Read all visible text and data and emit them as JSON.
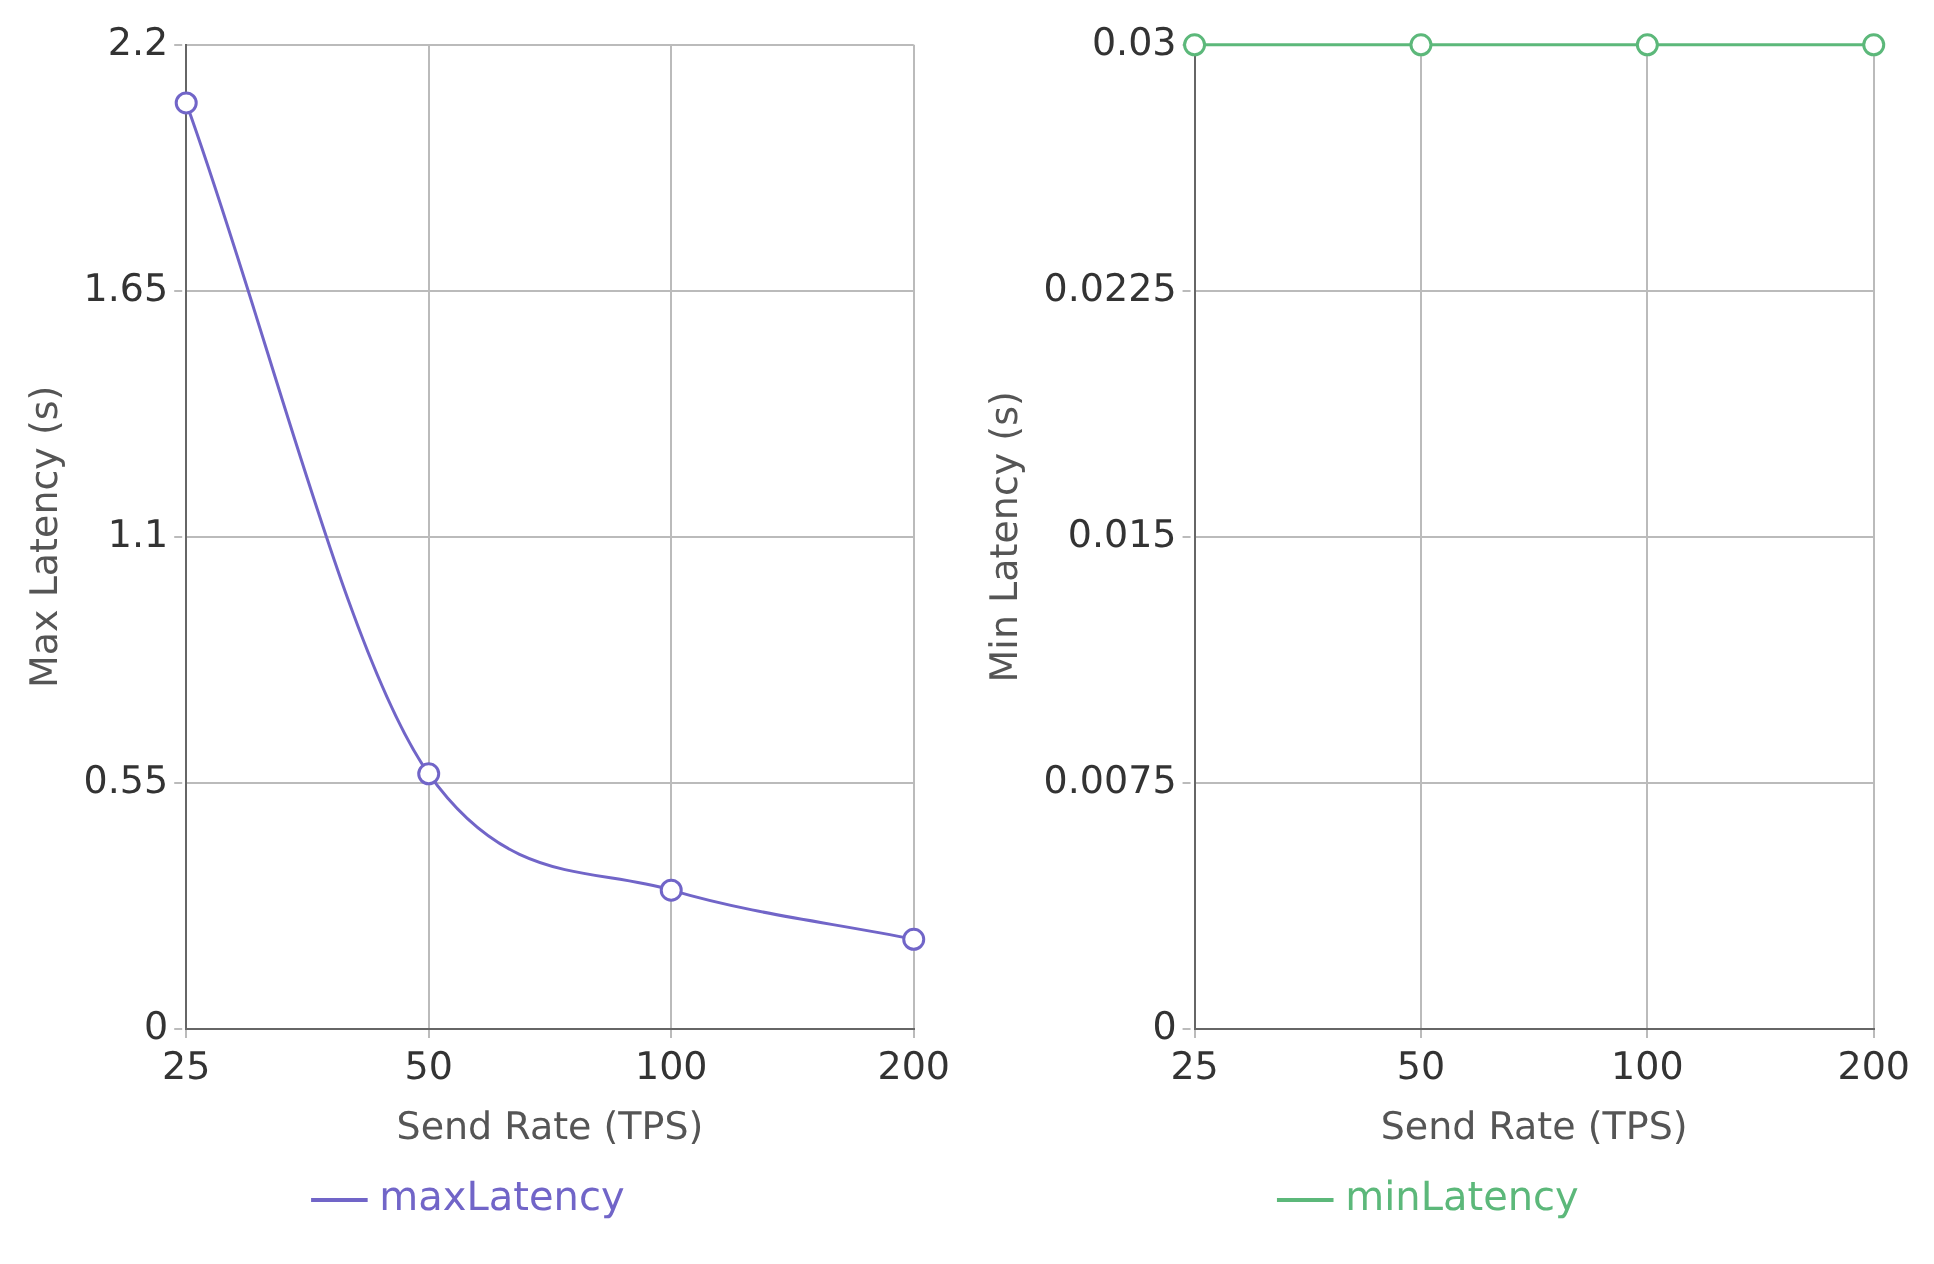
{
  "chart_data": [
    {
      "type": "line",
      "xlabel": "Send Rate (TPS)",
      "ylabel": "Max Latency (s)",
      "categories": [
        "25",
        "50",
        "100",
        "200"
      ],
      "series": [
        {
          "name": "maxLatency",
          "color": "#7165c8",
          "values": [
            2.07,
            0.57,
            0.31,
            0.2
          ]
        }
      ],
      "ylim": [
        0,
        2.2
      ],
      "yticks": [
        0,
        0.55,
        1.1,
        1.65,
        2.2
      ],
      "grid": true,
      "legend": "bottom",
      "marker": "circle",
      "line_style": "solid"
    },
    {
      "type": "line",
      "xlabel": "Send Rate (TPS)",
      "ylabel": "Min Latency (s)",
      "categories": [
        "25",
        "50",
        "100",
        "200"
      ],
      "series": [
        {
          "name": "minLatency",
          "color": "#5cb87a",
          "values": [
            0.03,
            0.03,
            0.03,
            0.03
          ]
        }
      ],
      "ylim": [
        0,
        0.03
      ],
      "yticks": [
        0,
        0.0075,
        0.015,
        0.0225,
        0.03
      ],
      "grid": true,
      "legend": "bottom",
      "marker": "circle",
      "line_style": "solid"
    }
  ]
}
